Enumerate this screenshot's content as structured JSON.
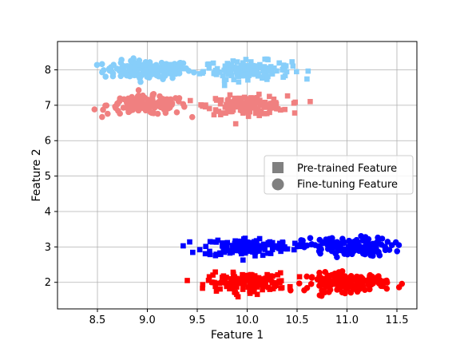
{
  "chart_data": {
    "type": "scatter",
    "title": "",
    "xlabel": "Feature 1",
    "ylabel": "Feature 2",
    "xlim": [
      8.1,
      11.7
    ],
    "ylim": [
      1.25,
      8.8
    ],
    "xticks": [
      8.5,
      9.0,
      9.5,
      10.0,
      10.5,
      11.0,
      11.5
    ],
    "xtick_labels": [
      "8.5",
      "9.0",
      "9.5",
      "10.0",
      "10.5",
      "11.0",
      "11.5"
    ],
    "yticks": [
      2,
      3,
      4,
      5,
      6,
      7,
      8
    ],
    "ytick_labels": [
      "2",
      "3",
      "4",
      "5",
      "6",
      "7",
      "8"
    ],
    "grid": true,
    "legend_position": "center-right",
    "legend": [
      {
        "label": "Pre-trained Feature",
        "marker": "square",
        "color": "#808080"
      },
      {
        "label": "Fine-tuning Feature",
        "marker": "circle",
        "color": "#808080"
      }
    ],
    "series": [
      {
        "marker": "circle",
        "color": "#87CEFA",
        "cluster": {
          "cx": 9.0,
          "cy": 8.0,
          "sx": 0.22,
          "sy": 0.13,
          "n": 150
        }
      },
      {
        "marker": "square",
        "color": "#87CEFA",
        "cluster": {
          "cx": 10.0,
          "cy": 8.0,
          "sx": 0.22,
          "sy": 0.13,
          "n": 150
        }
      },
      {
        "marker": "circle",
        "color": "#F08080",
        "cluster": {
          "cx": 9.0,
          "cy": 7.0,
          "sx": 0.2,
          "sy": 0.13,
          "n": 150
        }
      },
      {
        "marker": "square",
        "color": "#F08080",
        "cluster": {
          "cx": 10.0,
          "cy": 7.0,
          "sx": 0.2,
          "sy": 0.13,
          "n": 150
        }
      },
      {
        "marker": "square",
        "color": "#0000FF",
        "cluster": {
          "cx": 10.0,
          "cy": 3.0,
          "sx": 0.22,
          "sy": 0.13,
          "n": 150
        }
      },
      {
        "marker": "circle",
        "color": "#0000FF",
        "cluster": {
          "cx": 11.0,
          "cy": 3.0,
          "sx": 0.22,
          "sy": 0.13,
          "n": 150
        }
      },
      {
        "marker": "square",
        "color": "#FF0000",
        "cluster": {
          "cx": 10.0,
          "cy": 2.0,
          "sx": 0.2,
          "sy": 0.13,
          "n": 150
        }
      },
      {
        "marker": "circle",
        "color": "#FF0000",
        "cluster": {
          "cx": 11.0,
          "cy": 2.0,
          "sx": 0.2,
          "sy": 0.13,
          "n": 150
        }
      }
    ]
  }
}
